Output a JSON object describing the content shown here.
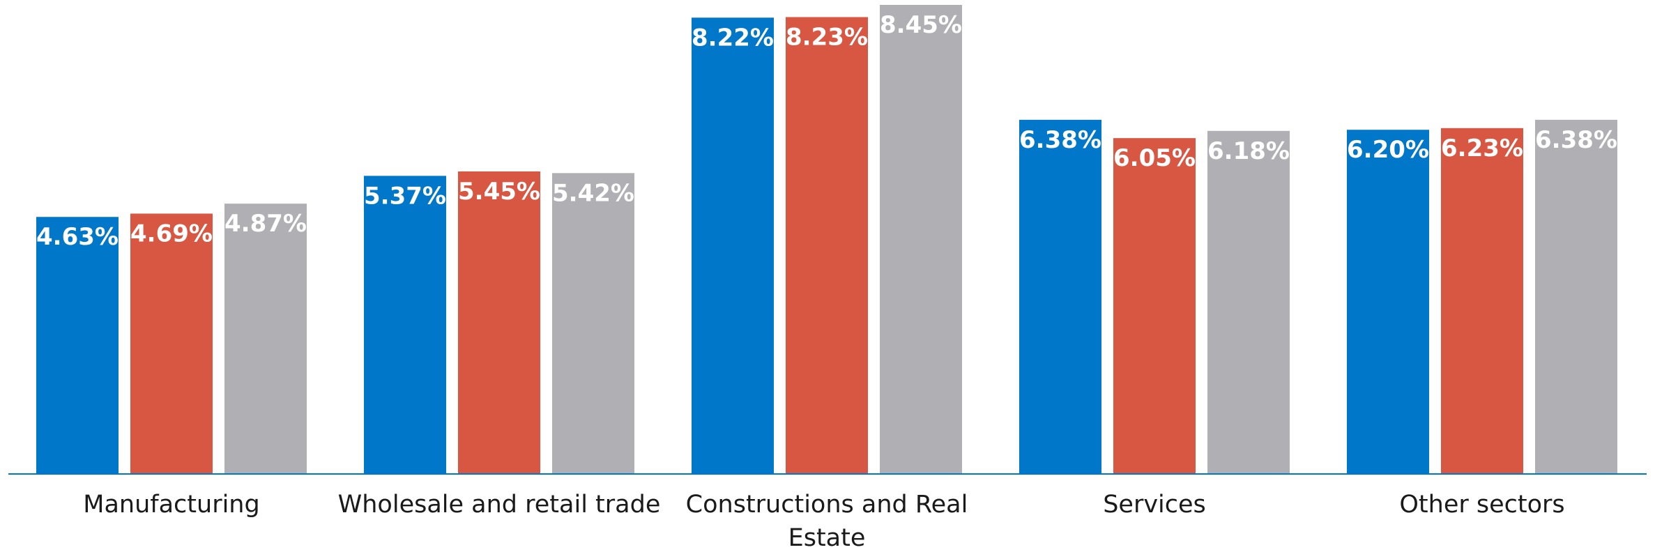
{
  "chart_data": {
    "type": "bar",
    "title": "",
    "xlabel": "",
    "ylabel": "",
    "categories": [
      [
        "Manufacturing"
      ],
      [
        "Wholesale and retail trade"
      ],
      [
        "Constructions and Real",
        "Estate"
      ],
      [
        "Services"
      ],
      [
        "Other sectors"
      ]
    ],
    "series": [
      {
        "color": "#0077c8",
        "values": [
          4.63,
          5.37,
          8.22,
          6.38,
          6.2
        ],
        "labels": [
          "4.63%",
          "5.37%",
          "8.22%",
          "6.38%",
          "6.20%"
        ]
      },
      {
        "color": "#d85743",
        "values": [
          4.69,
          5.45,
          8.23,
          6.05,
          6.23
        ],
        "labels": [
          "4.69%",
          "5.45%",
          "8.23%",
          "6.05%",
          "6.23%"
        ]
      },
      {
        "color": "#b0afb3",
        "values": [
          4.87,
          5.42,
          8.45,
          6.18,
          6.38
        ],
        "labels": [
          "4.87%",
          "5.42%",
          "8.45%",
          "6.18%",
          "6.38%"
        ]
      }
    ],
    "ylim": [
      0,
      8.45
    ],
    "grid": false,
    "legend": "none",
    "axis_color": "#0077c8"
  }
}
